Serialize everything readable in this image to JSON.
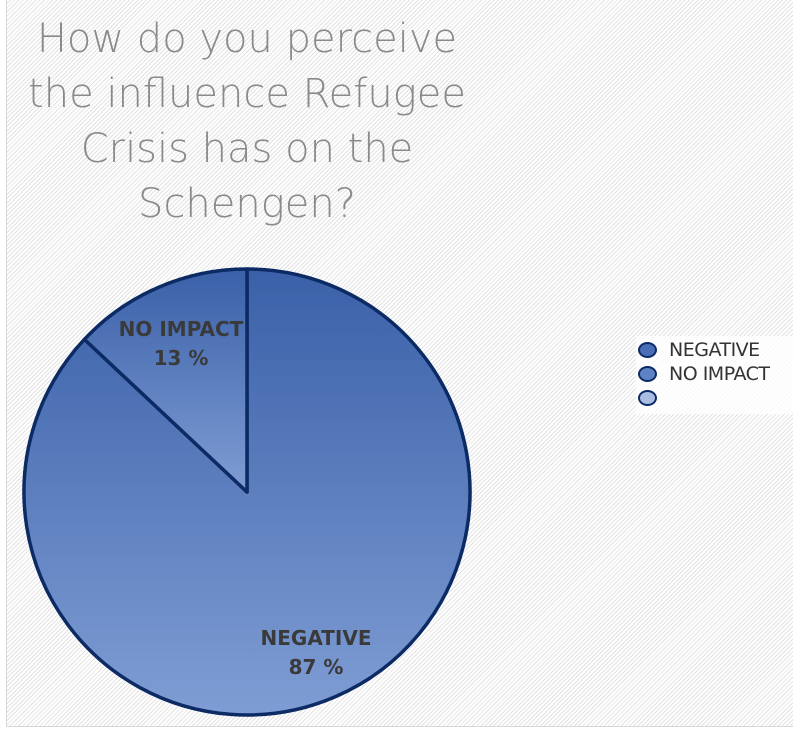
{
  "chart_data": {
    "type": "pie",
    "title": "How do you perceive the influence Refugee Crisis has on the Schengen?",
    "slices": [
      {
        "label": "NEGATIVE",
        "value": 87,
        "value_label": "87 %"
      },
      {
        "label": "NO IMPACT",
        "value": 13,
        "value_label": "13 %"
      }
    ],
    "legend": {
      "position": "right",
      "entries": [
        "NEGATIVE",
        "NO IMPACT",
        ""
      ]
    },
    "colors": {
      "slice_top": "#3a60a8",
      "slice_bottom": "#7f9dd4",
      "outline": "#0c2a63",
      "legend_fills": [
        "#4a6eb5",
        "#5f82c6",
        "#a9bde3"
      ],
      "label_text": "#3a3a3a",
      "title_text": "#8a8a8a"
    }
  }
}
